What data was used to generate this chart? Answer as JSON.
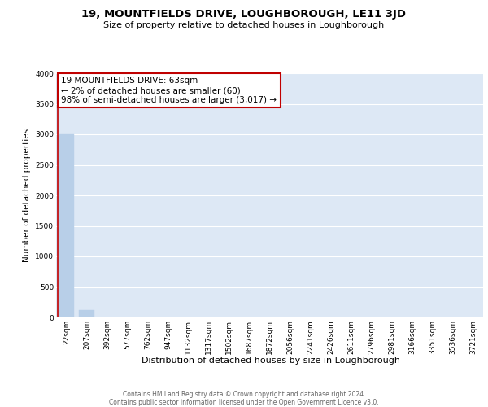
{
  "title": "19, MOUNTFIELDS DRIVE, LOUGHBOROUGH, LE11 3JD",
  "subtitle": "Size of property relative to detached houses in Loughborough",
  "xlabel": "Distribution of detached houses by size in Loughborough",
  "ylabel": "Number of detached properties",
  "footer_line1": "Contains HM Land Registry data © Crown copyright and database right 2024.",
  "footer_line2": "Contains public sector information licensed under the Open Government Licence v3.0.",
  "categories": [
    "22sqm",
    "207sqm",
    "392sqm",
    "577sqm",
    "762sqm",
    "947sqm",
    "1132sqm",
    "1317sqm",
    "1502sqm",
    "1687sqm",
    "1872sqm",
    "2056sqm",
    "2241sqm",
    "2426sqm",
    "2611sqm",
    "2796sqm",
    "2981sqm",
    "3166sqm",
    "3351sqm",
    "3536sqm",
    "3721sqm"
  ],
  "values": [
    3000,
    120,
    3,
    2,
    1,
    1,
    1,
    1,
    1,
    1,
    1,
    1,
    1,
    0,
    0,
    0,
    0,
    0,
    0,
    0,
    0
  ],
  "bar_color": "#b8cfe8",
  "highlight_color": "#c00000",
  "ylim": [
    0,
    4000
  ],
  "yticks": [
    0,
    500,
    1000,
    1500,
    2000,
    2500,
    3000,
    3500,
    4000
  ],
  "annotation_line1": "19 MOUNTFIELDS DRIVE: 63sqm",
  "annotation_line2": "← 2% of detached houses are smaller (60)",
  "annotation_line3": "98% of semi-detached houses are larger (3,017) →",
  "annotation_box_color": "#c00000",
  "bg_color": "#dde8f5",
  "grid_color": "#ffffff",
  "fig_bg_color": "#ffffff",
  "title_fontsize": 9.5,
  "subtitle_fontsize": 8,
  "tick_fontsize": 6.5,
  "ylabel_fontsize": 7.5,
  "xlabel_fontsize": 8,
  "annotation_fontsize": 7.5,
  "footer_fontsize": 5.5
}
